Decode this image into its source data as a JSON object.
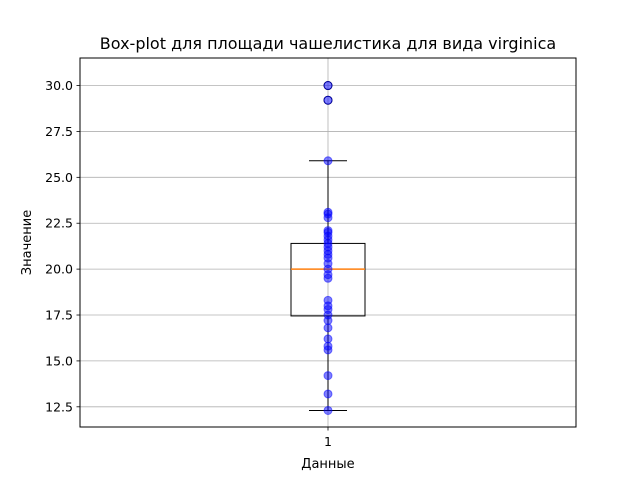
{
  "chart_data": {
    "type": "box",
    "title": "Box-plot для площади чашелистика для вида virginica",
    "xlabel": "Данные",
    "ylabel": "Значение",
    "categories": [
      "1"
    ],
    "ylim": [
      11.4,
      31.5
    ],
    "yticks": [
      12.5,
      15.0,
      17.5,
      20.0,
      22.5,
      25.0,
      27.5,
      30.0
    ],
    "ytick_labels": [
      "12.5",
      "15.0",
      "17.5",
      "20.0",
      "22.5",
      "25.0",
      "27.5",
      "30.0"
    ],
    "grid": true,
    "box": {
      "whisker_low": 12.3,
      "q1": 17.45,
      "median": 20.0,
      "q3": 21.4,
      "whisker_high": 25.9
    },
    "outliers": [
      29.2,
      30.0
    ],
    "points": [
      12.3,
      13.2,
      14.2,
      15.6,
      15.8,
      16.2,
      16.8,
      17.2,
      17.5,
      17.8,
      18.0,
      18.3,
      19.5,
      19.7,
      20.0,
      20.3,
      20.6,
      20.8,
      21.0,
      21.2,
      21.4,
      21.6,
      21.8,
      22.0,
      22.1,
      22.8,
      23.0,
      23.1,
      25.9,
      29.2,
      30.0
    ],
    "colors": {
      "points": "#0000ff",
      "median": "#ff7f0e",
      "box": "#000000",
      "grid": "#b0b0b0"
    }
  }
}
